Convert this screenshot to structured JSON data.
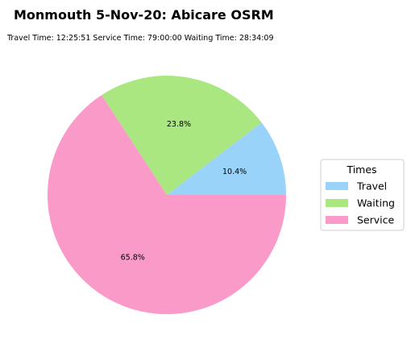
{
  "chart_data": {
    "type": "pie",
    "title": "Monmouth 5-Nov-20: Abicare OSRM",
    "subtitle": "Travel Time: 12:25:51  Service Time: 79:00:00  Waiting Time: 28:34:09",
    "legend_title": "Times",
    "legend_placement": "right",
    "start_angle_deg": 0,
    "direction": "counterclockwise",
    "slices": [
      {
        "name": "Travel",
        "value": 10.4,
        "label": "10.4%",
        "color": "#99d3f9"
      },
      {
        "name": "Waiting",
        "value": 23.8,
        "label": "23.8%",
        "color": "#aae780"
      },
      {
        "name": "Service",
        "value": 65.8,
        "label": "65.8%",
        "color": "#f99ac8"
      }
    ]
  }
}
